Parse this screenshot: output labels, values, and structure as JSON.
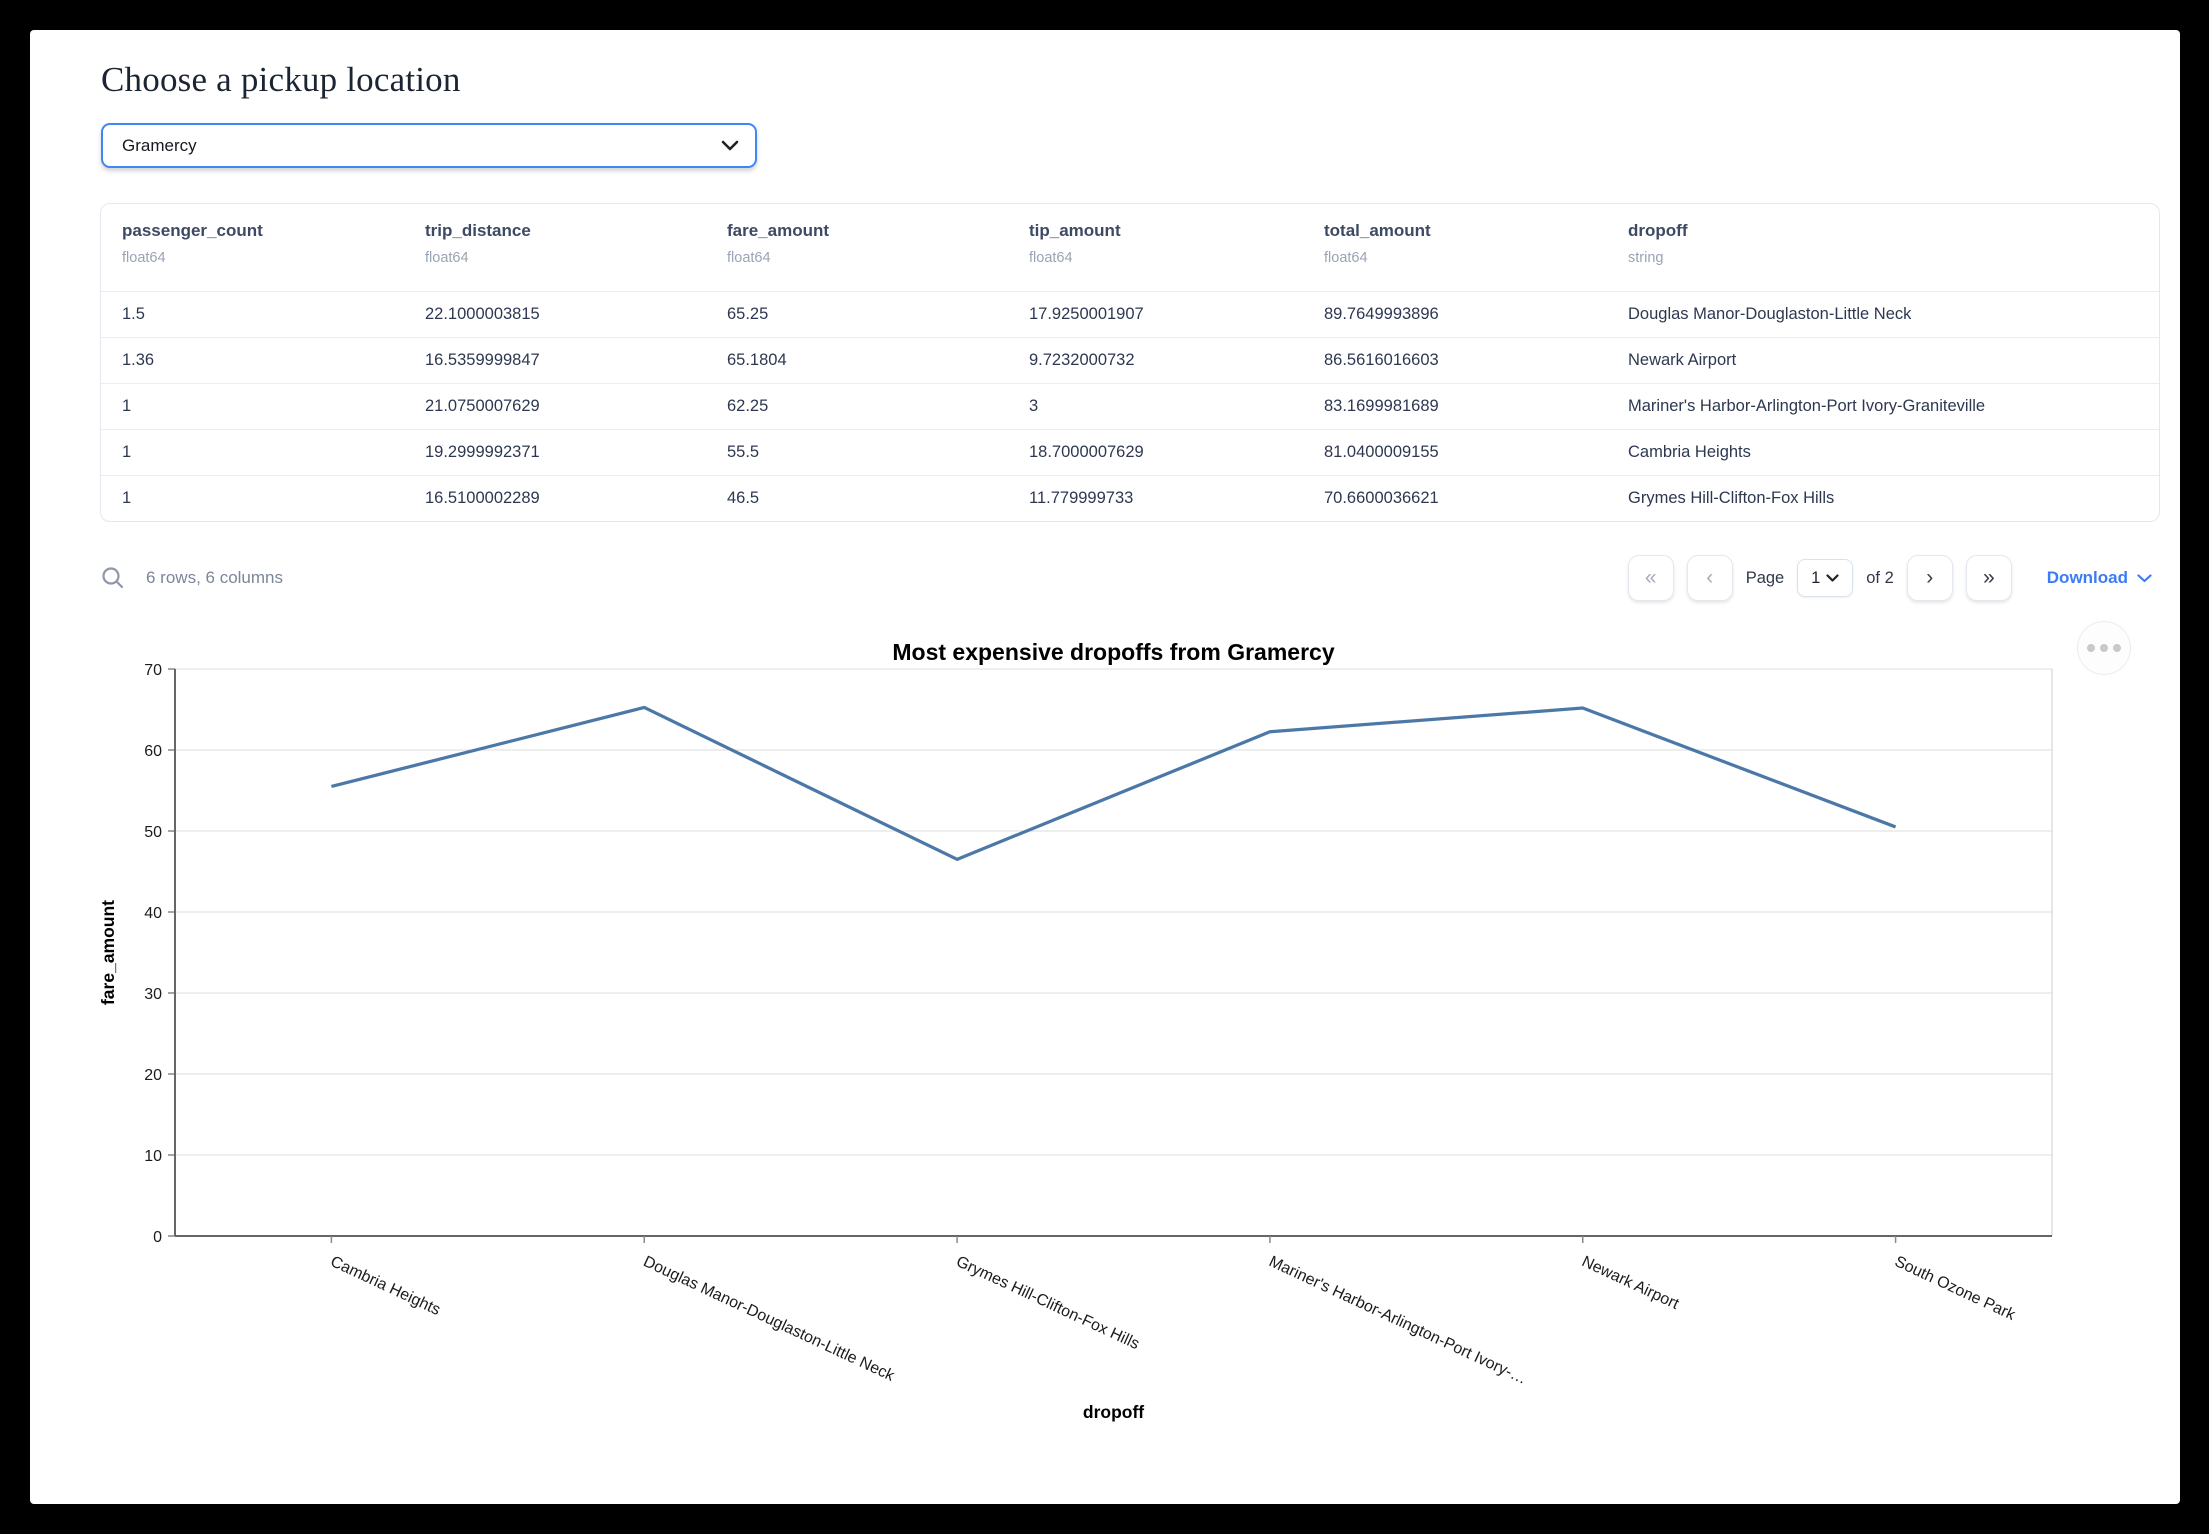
{
  "page": {
    "title": "Choose a pickup location"
  },
  "pickup": {
    "value": "Gramercy"
  },
  "table": {
    "columns": [
      {
        "name": "passenger_count",
        "dtype": "float64"
      },
      {
        "name": "trip_distance",
        "dtype": "float64"
      },
      {
        "name": "fare_amount",
        "dtype": "float64"
      },
      {
        "name": "tip_amount",
        "dtype": "float64"
      },
      {
        "name": "total_amount",
        "dtype": "float64"
      },
      {
        "name": "dropoff",
        "dtype": "string"
      }
    ],
    "rows": [
      [
        "1.5",
        "22.1000003815",
        "65.25",
        "17.9250001907",
        "89.7649993896",
        "Douglas Manor-Douglaston-Little Neck"
      ],
      [
        "1.36",
        "16.5359999847",
        "65.1804",
        "9.7232000732",
        "86.5616016603",
        "Newark Airport"
      ],
      [
        "1",
        "21.0750007629",
        "62.25",
        "3",
        "83.1699981689",
        "Mariner's Harbor-Arlington-Port Ivory-Graniteville"
      ],
      [
        "1",
        "19.2999992371",
        "55.5",
        "18.7000007629",
        "81.0400009155",
        "Cambria Heights"
      ],
      [
        "1",
        "16.5100002289",
        "46.5",
        "11.779999733",
        "70.6600036621",
        "Grymes Hill-Clifton-Fox Hills"
      ]
    ],
    "summary": "6 rows, 6 columns"
  },
  "pagination": {
    "first": "«",
    "prev": "‹",
    "page_label": "Page",
    "page_value": "1",
    "of_text": "of 2",
    "next": "›",
    "last": "»",
    "download_label": "Download"
  },
  "chart_data": {
    "type": "line",
    "title": "Most expensive dropoffs from Gramercy",
    "xlabel": "dropoff",
    "ylabel": "fare_amount",
    "ylim": [
      0,
      70
    ],
    "yticks": [
      0,
      10,
      20,
      30,
      40,
      50,
      60,
      70
    ],
    "grid": true,
    "legend": "none",
    "categories": [
      "Cambria Heights",
      "Douglas Manor-Douglaston-Little Neck",
      "Grymes Hill-Clifton-Fox Hills",
      "Mariner's Harbor-Arlington-Port Ivory-Graniteville",
      "Newark Airport",
      "South Ozone Park"
    ],
    "tick_labels": [
      "Cambria Heights",
      "Douglas Manor-Douglaston-Little Neck",
      "Grymes Hill-Clifton-Fox Hills",
      "Mariner's Harbor-Arlington-Port Ivory-…",
      "Newark Airport",
      "South Ozone Park"
    ],
    "values": [
      55.5,
      65.25,
      46.5,
      62.25,
      65.1804,
      50.5
    ],
    "line_color": "#4c78a8"
  },
  "colors": {
    "accent": "#3f86f6",
    "link": "#3c7bf6",
    "line": "#4c78a8",
    "grid": "#dddddd",
    "axis": "#888888"
  }
}
